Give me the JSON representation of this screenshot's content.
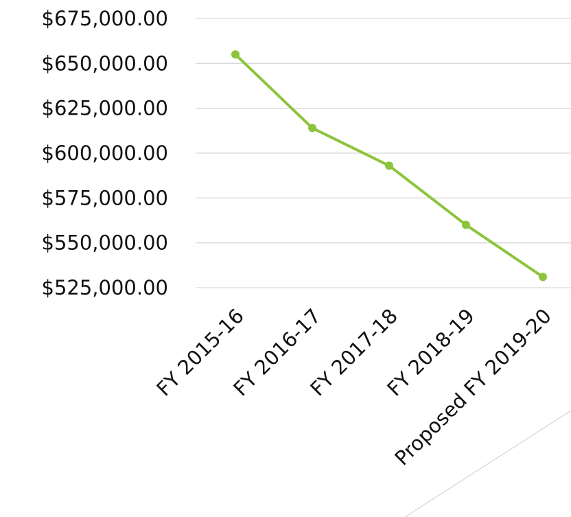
{
  "chart_data": {
    "type": "line",
    "title": "",
    "xlabel": "",
    "ylabel": "",
    "categories": [
      "FY 2015-16",
      "FY 2016-17",
      "FY 2017-18",
      "FY 2018-19",
      "Proposed FY 2019-20"
    ],
    "series": [
      {
        "values": [
          655000,
          614000,
          593000,
          560000,
          531000
        ]
      }
    ],
    "ylim": [
      525000,
      675000
    ],
    "y_ticks": [
      {
        "value": 675000,
        "label": "$675,000.00"
      },
      {
        "value": 650000,
        "label": "$650,000.00"
      },
      {
        "value": 625000,
        "label": "$625,000.00"
      },
      {
        "value": 600000,
        "label": "$600,000.00"
      },
      {
        "value": 575000,
        "label": "$575,000.00"
      },
      {
        "value": 550000,
        "label": "$550,000.00"
      },
      {
        "value": 525000,
        "label": "$525,000.00"
      }
    ],
    "grid": true,
    "legend": "none",
    "colors": {
      "line": "#8cc43c",
      "grid": "#d9d9d9",
      "text": "#111111"
    }
  }
}
